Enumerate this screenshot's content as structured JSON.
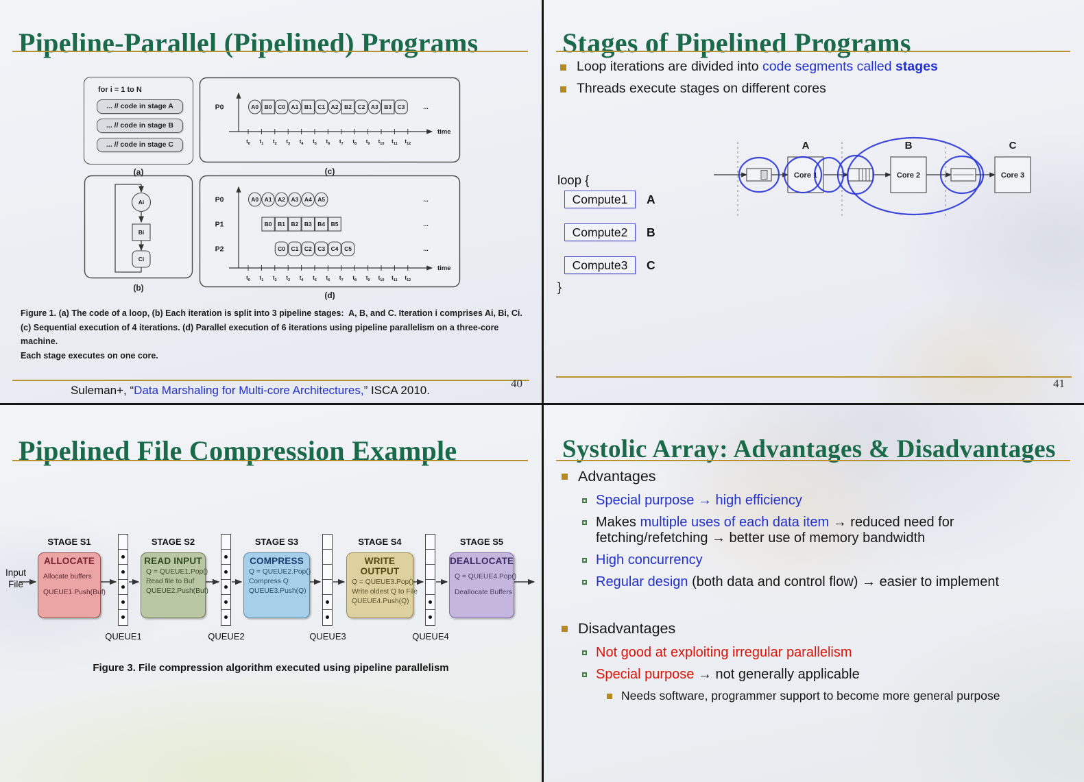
{
  "colors": {
    "title_green": "#1a6a4a",
    "rule_gold": "#b8922e",
    "blue": "#2230cc",
    "red": "#dc1407",
    "black": "#161616",
    "bullet_gold": "#b68a20",
    "bullet_green": "#3f7d3f",
    "annotation_blue": "#2a35d8",
    "link_blue": "#2230cc"
  },
  "s40": {
    "title": "Pipeline-Parallel (Pipelined) Programs",
    "page": "40",
    "fig": {
      "a": {
        "header": "for i = 1 to N",
        "boxes": [
          "... // code in stage A",
          "... // code in stage B",
          "... // code in stage C"
        ],
        "label": "(a)"
      },
      "b": {
        "nodes": [
          {
            "t": "Ai",
            "s": "e"
          },
          {
            "t": "Bi",
            "s": "r"
          },
          {
            "t": "Ci",
            "s": "rr"
          }
        ],
        "label": "(b)"
      },
      "c": {
        "proc": "P0",
        "label": "(c)",
        "time": "time",
        "dots": "...",
        "ticks": [
          "0",
          "1",
          "2",
          "3",
          "4",
          "5",
          "6",
          "7",
          "8",
          "9",
          "10",
          "11",
          "12"
        ],
        "seq": [
          {
            "t": "A0",
            "s": "e"
          },
          {
            "t": "B0",
            "s": "r"
          },
          {
            "t": "C0",
            "s": "rr"
          },
          {
            "t": "A1",
            "s": "e"
          },
          {
            "t": "B1",
            "s": "r"
          },
          {
            "t": "C1",
            "s": "rr"
          },
          {
            "t": "A2",
            "s": "e"
          },
          {
            "t": "B2",
            "s": "r"
          },
          {
            "t": "C2",
            "s": "rr"
          },
          {
            "t": "A3",
            "s": "e"
          },
          {
            "t": "B3",
            "s": "r"
          },
          {
            "t": "C3",
            "s": "rr"
          }
        ]
      },
      "d": {
        "label": "(d)",
        "time": "time",
        "dots": "...",
        "ticks": [
          "0",
          "1",
          "2",
          "3",
          "4",
          "5",
          "6",
          "7",
          "8",
          "9",
          "10",
          "11",
          "12"
        ],
        "rows": [
          {
            "proc": "P0",
            "start": 0,
            "shape": "e",
            "items": [
              "A0",
              "A1",
              "A2",
              "A3",
              "A4",
              "A5"
            ]
          },
          {
            "proc": "P1",
            "start": 1,
            "shape": "r",
            "items": [
              "B0",
              "B1",
              "B2",
              "B3",
              "B4",
              "B5"
            ]
          },
          {
            "proc": "P2",
            "start": 2,
            "shape": "rr",
            "items": [
              "C0",
              "C1",
              "C2",
              "C3",
              "C4",
              "C5"
            ]
          }
        ]
      },
      "caption": [
        "Figure 1. (a) The code of a loop, (b) Each iteration is split into 3 pipeline stages:  A, B, and C. Iteration i comprises Ai, Bi, Ci.",
        "(c) Sequential execution of 4 iterations. (d) Parallel execution of 6 iterations using pipeline parallelism on a three-core machine.",
        "Each stage executes on one core."
      ]
    },
    "footer": {
      "pre": "Suleman+, “",
      "link": "Data Marshaling for Multi-core Architectures,",
      "post": "” ISCA 2010."
    }
  },
  "s41": {
    "title": "Stages of Pipelined Programs",
    "page": "41",
    "bullets": [
      {
        "level": 1,
        "seg": [
          {
            "t": "Loop iterations are divided into "
          },
          {
            "t": "code segments called ",
            "c": "blue"
          },
          {
            "t": "stages",
            "c": "blue",
            "b": true
          }
        ]
      },
      {
        "level": 1,
        "seg": [
          {
            "t": "Threads execute stages on different cores"
          }
        ]
      }
    ],
    "code": {
      "open": "loop {",
      "close": "}",
      "items": [
        {
          "box": "Compute1",
          "tag": "A"
        },
        {
          "box": "Compute2",
          "tag": "B"
        },
        {
          "box": "Compute3",
          "tag": "C"
        }
      ]
    },
    "diagram": {
      "labels": [
        "A",
        "B",
        "C"
      ],
      "cores": [
        "Core 1",
        "Core 2",
        "Core 3"
      ]
    }
  },
  "s43": {
    "title": "Pipelined File Compression Example",
    "input": [
      "Input",
      "File"
    ],
    "stages": [
      {
        "stage": "STAGE S1",
        "head": "ALLOCATE",
        "lines": [
          "Allocate buffers",
          "QUEUE1.Push(Buf)"
        ],
        "fill": "#eba5a5",
        "border": "#9c5050",
        "head_color": "#7a1f2d",
        "text_color": "#5a2731"
      },
      {
        "stage": "STAGE S2",
        "head": "READ INPUT",
        "lines": [
          "Q = QUEUE1.Pop()",
          "Read file to Buf",
          "QUEUE2.Push(Buf)"
        ],
        "fill": "#b9c7a5",
        "border": "#728155",
        "head_color": "#2e4a1e",
        "text_color": "#3c4d2c"
      },
      {
        "stage": "STAGE S3",
        "head": "COMPRESS",
        "lines": [
          "Q = QUEUE2.Pop()",
          "Compress Q",
          "QUEUE3.Push(Q)"
        ],
        "fill": "#a6d0e9",
        "border": "#5f8cad",
        "head_color": "#1a3a6e",
        "text_color": "#2b4a66"
      },
      {
        "stage": "STAGE S4",
        "head": "WRITE OUTPUT",
        "lines": [
          "Q = QUEUE3.Pop()",
          "Write oldest Q to File",
          "QUEUE4.Push(Q)"
        ],
        "fill": "#ddd1a0",
        "border": "#a08f50",
        "head_color": "#564810",
        "text_color": "#5a5128"
      },
      {
        "stage": "STAGE S5",
        "head": "DEALLOCATE",
        "lines": [
          "Q = QUEUE4.Pop()",
          "Deallocate Buffers"
        ],
        "fill": "#c5b6dd",
        "border": "#8570ab",
        "head_color": "#3a2a66",
        "text_color": "#463a64"
      }
    ],
    "queues": [
      {
        "label": "QUEUE1",
        "dots": [
          2,
          3,
          4,
          5,
          6
        ]
      },
      {
        "label": "QUEUE2",
        "dots": [
          2,
          3,
          4,
          5,
          6
        ]
      },
      {
        "label": "QUEUE3",
        "dots": [
          5,
          6
        ]
      },
      {
        "label": "QUEUE4",
        "dots": [
          5,
          6
        ]
      }
    ],
    "caption": "Figure 3. File compression algorithm executed using pipeline parallelism"
  },
  "s44": {
    "title": "Systolic Array: Advantages & Disadvantages",
    "bullets": [
      {
        "level": 1,
        "seg": [
          {
            "t": "Advantages"
          }
        ]
      },
      {
        "level": 2,
        "seg": [
          {
            "t": "Special purpose → high efficiency",
            "c": "blue"
          }
        ]
      },
      {
        "level": 2,
        "seg": [
          {
            "t": "Makes "
          },
          {
            "t": "multiple uses of each data item",
            "c": "blue"
          },
          {
            "t": " → reduced need for fetching/refetching → better use of memory bandwidth"
          }
        ]
      },
      {
        "level": 2,
        "seg": [
          {
            "t": "High concurrency",
            "c": "blue"
          }
        ]
      },
      {
        "level": 2,
        "seg": [
          {
            "t": "Regular design",
            "c": "blue"
          },
          {
            "t": " (both data and control flow) → easier to implement"
          }
        ]
      },
      {
        "level": 1,
        "gap": 44,
        "seg": [
          {
            "t": "Disadvantages"
          }
        ]
      },
      {
        "level": 2,
        "seg": [
          {
            "t": "Not good at exploiting irregular parallelism",
            "c": "red"
          }
        ]
      },
      {
        "level": 2,
        "seg": [
          {
            "t": "Special purpose",
            "c": "red"
          },
          {
            "t": " → not generally applicable"
          }
        ]
      },
      {
        "level": 3,
        "seg": [
          {
            "t": "Needs software, programmer support to become more general purpose"
          }
        ]
      }
    ]
  }
}
